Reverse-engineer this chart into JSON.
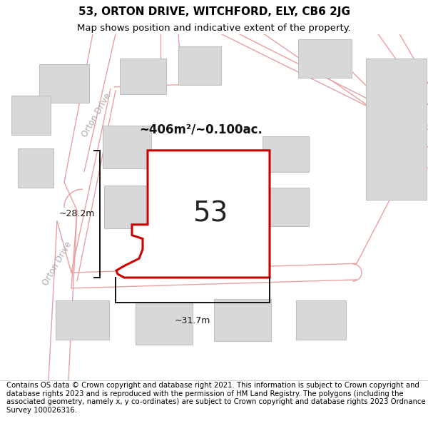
{
  "title": "53, ORTON DRIVE, WITCHFORD, ELY, CB6 2JG",
  "subtitle": "Map shows position and indicative extent of the property.",
  "footer": "Contains OS data © Crown copyright and database right 2021. This information is subject to Crown copyright and database rights 2023 and is reproduced with the permission of HM Land Registry. The polygons (including the associated geometry, namely x, y co-ordinates) are subject to Crown copyright and database rights 2023 Ordnance Survey 100026316.",
  "map_bg": "#f7f7f7",
  "road_line_color": "#e8a0a0",
  "building_fill": "#d8d8d8",
  "building_edge": "#c0c0c0",
  "plot_edge": "#cc0000",
  "plot_fill": "#ffffff",
  "area_text": "~406m²/~0.100ac.",
  "label_53": "53",
  "dim_width": "~31.7m",
  "dim_height": "~28.2m",
  "road_label": "Orton Drive",
  "title_fontsize": 11,
  "subtitle_fontsize": 9.5,
  "footer_fontsize": 7.3,
  "dim_line_color": "#111111",
  "road_label_color": "#aaaaaa",
  "label_color": "#222222",
  "area_color": "#111111"
}
